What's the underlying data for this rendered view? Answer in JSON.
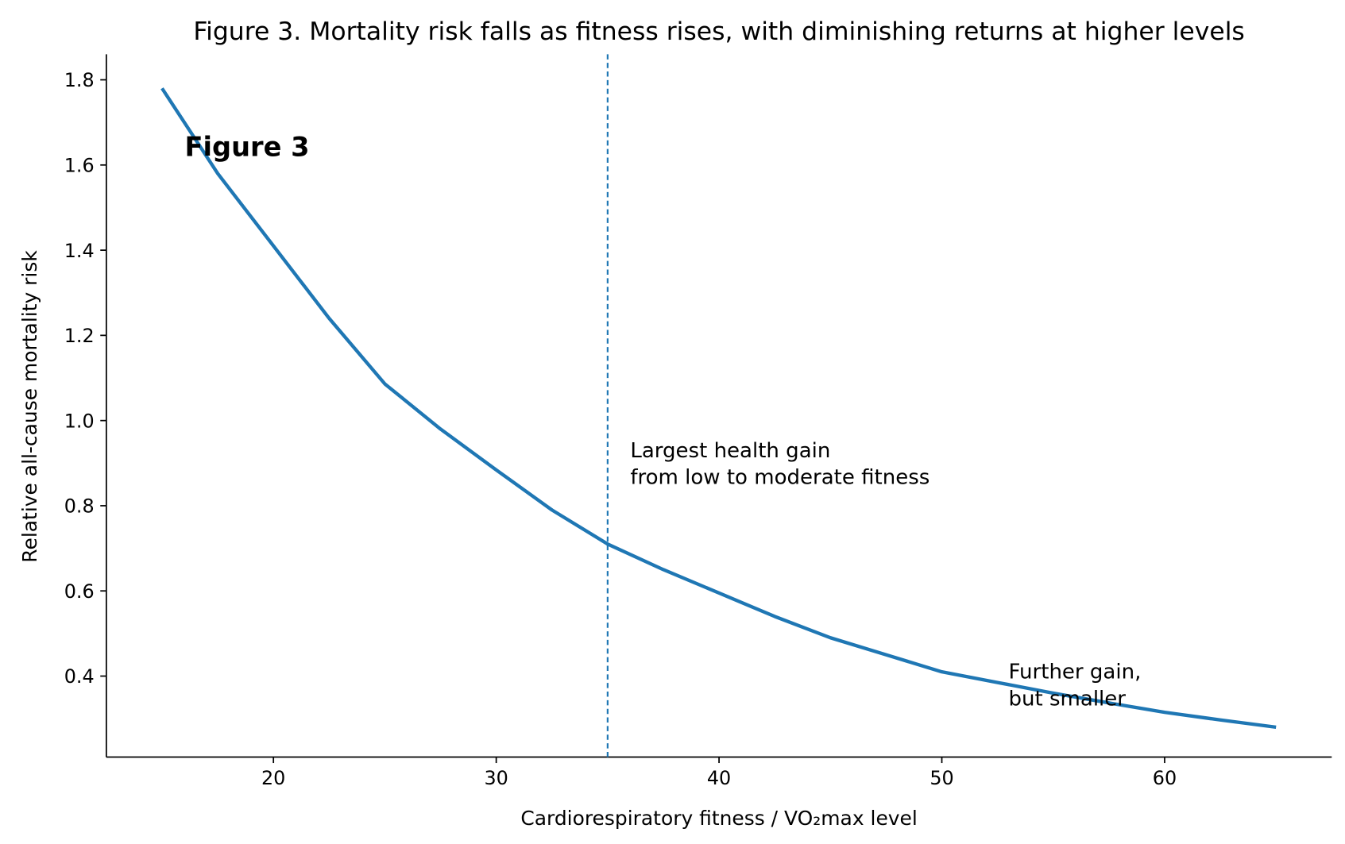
{
  "chart_data": {
    "type": "line",
    "title": "Figure 3. Mortality risk falls as fitness rises, with diminishing returns at higher levels",
    "x_label": "Cardiorespiratory fitness / VO₂max level",
    "y_label": "Relative all-cause mortality risk",
    "x": [
      15,
      17.5,
      20,
      22.5,
      25,
      27.5,
      30,
      32.5,
      35,
      37.5,
      40,
      42.5,
      45,
      47.5,
      50,
      52.5,
      55,
      57.5,
      60,
      62.5,
      65
    ],
    "series": [
      {
        "color": "#1f77b4",
        "values": [
          1.78,
          1.58,
          1.41,
          1.24,
          1.086,
          0.98,
          0.884,
          0.79,
          0.71,
          0.65,
          0.595,
          0.54,
          0.49,
          0.45,
          0.41,
          0.385,
          0.36,
          0.337,
          0.315,
          0.297,
          0.28
        ]
      }
    ],
    "xlim": [
      12.5,
      67.5
    ],
    "ylim": [
      0.21,
      1.86
    ],
    "xticks": [
      20,
      30,
      40,
      50,
      60
    ],
    "yticks": [
      0.4,
      0.6,
      0.8,
      {
        "value": 1,
        "label": "1.0"
      },
      1.2,
      1.4,
      1.6,
      1.8
    ],
    "vline": {
      "x": 35,
      "color": "#1f77b4"
    },
    "annotations": [
      "Figure 3",
      "Largest health gain",
      "from low to moderate fitness",
      "Further gain,",
      "but smaller"
    ]
  }
}
